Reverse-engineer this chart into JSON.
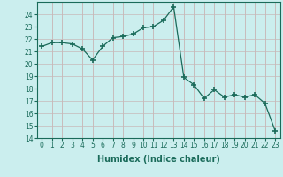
{
  "xlabel": "Humidex (Indice chaleur)",
  "x": [
    0,
    1,
    2,
    3,
    4,
    5,
    6,
    7,
    8,
    9,
    10,
    11,
    12,
    13,
    14,
    15,
    16,
    17,
    18,
    19,
    20,
    21,
    22,
    23
  ],
  "y": [
    21.4,
    21.7,
    21.7,
    21.6,
    21.2,
    20.3,
    21.4,
    22.1,
    22.2,
    22.4,
    22.9,
    23.0,
    23.5,
    24.6,
    18.9,
    18.3,
    17.2,
    17.9,
    17.3,
    17.5,
    17.3,
    17.5,
    16.8,
    14.6
  ],
  "line_color": "#1a6b5a",
  "marker": "+",
  "markersize": 4.0,
  "markeredgewidth": 1.2,
  "linewidth": 0.9,
  "ylim": [
    14,
    25
  ],
  "xlim": [
    -0.5,
    23.5
  ],
  "yticks": [
    14,
    15,
    16,
    17,
    18,
    19,
    20,
    21,
    22,
    23,
    24
  ],
  "xticks": [
    0,
    1,
    2,
    3,
    4,
    5,
    6,
    7,
    8,
    9,
    10,
    11,
    12,
    13,
    14,
    15,
    16,
    17,
    18,
    19,
    20,
    21,
    22,
    23
  ],
  "bg_color": "#cbeeee",
  "grid_color_v": "#c8a8a8",
  "grid_color_h": "#c8b8b8",
  "tick_fontsize": 5.5,
  "label_fontsize": 7,
  "label_color": "#1a6b5a"
}
